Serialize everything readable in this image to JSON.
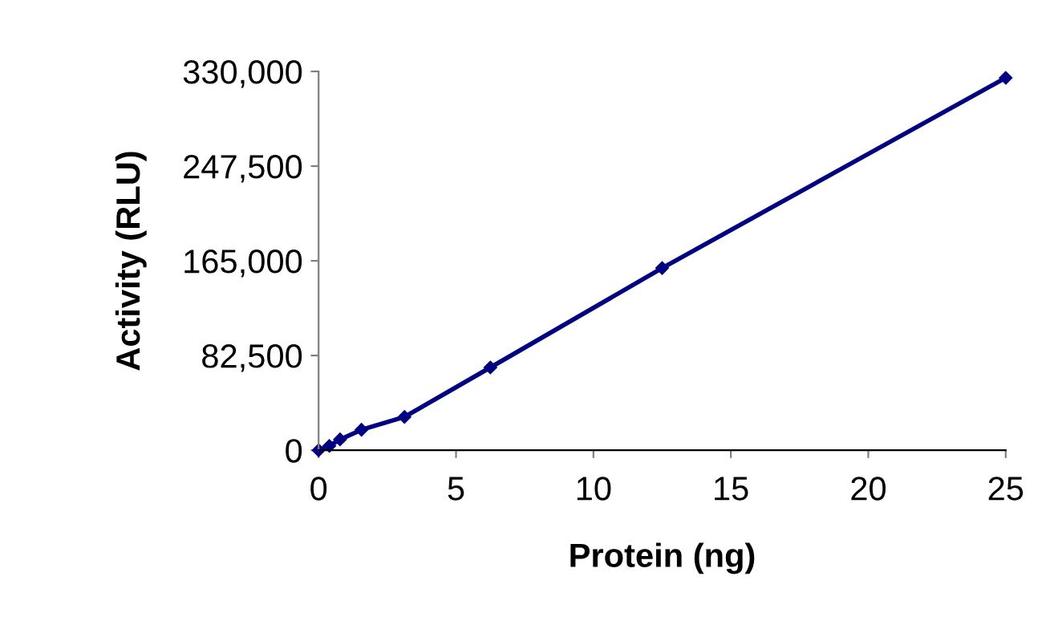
{
  "chart_data": {
    "type": "line",
    "xlabel": "Protein (ng)",
    "ylabel": "Activity (RLU)",
    "x": [
      0,
      0.39,
      0.78,
      1.56,
      3.125,
      6.25,
      12.5,
      25
    ],
    "series": [
      {
        "color": "#000080",
        "values": [
          0,
          3750,
          9400,
          17800,
          29000,
          72100,
          158700,
          324400
        ]
      }
    ],
    "xlim": [
      0,
      25
    ],
    "xticks": [
      0,
      5,
      10,
      15,
      20,
      25
    ],
    "ylim": [
      0,
      330000
    ],
    "yticks": [
      {
        "value": 0,
        "label": "0"
      },
      {
        "value": 82500,
        "label": "82,500"
      },
      {
        "value": 165000,
        "label": "165,000"
      },
      {
        "value": 247500,
        "label": "247,500"
      },
      {
        "value": 330000,
        "label": "330,000"
      }
    ],
    "grid": false,
    "legend": false,
    "marker": "diamond",
    "line_style": "solid"
  }
}
